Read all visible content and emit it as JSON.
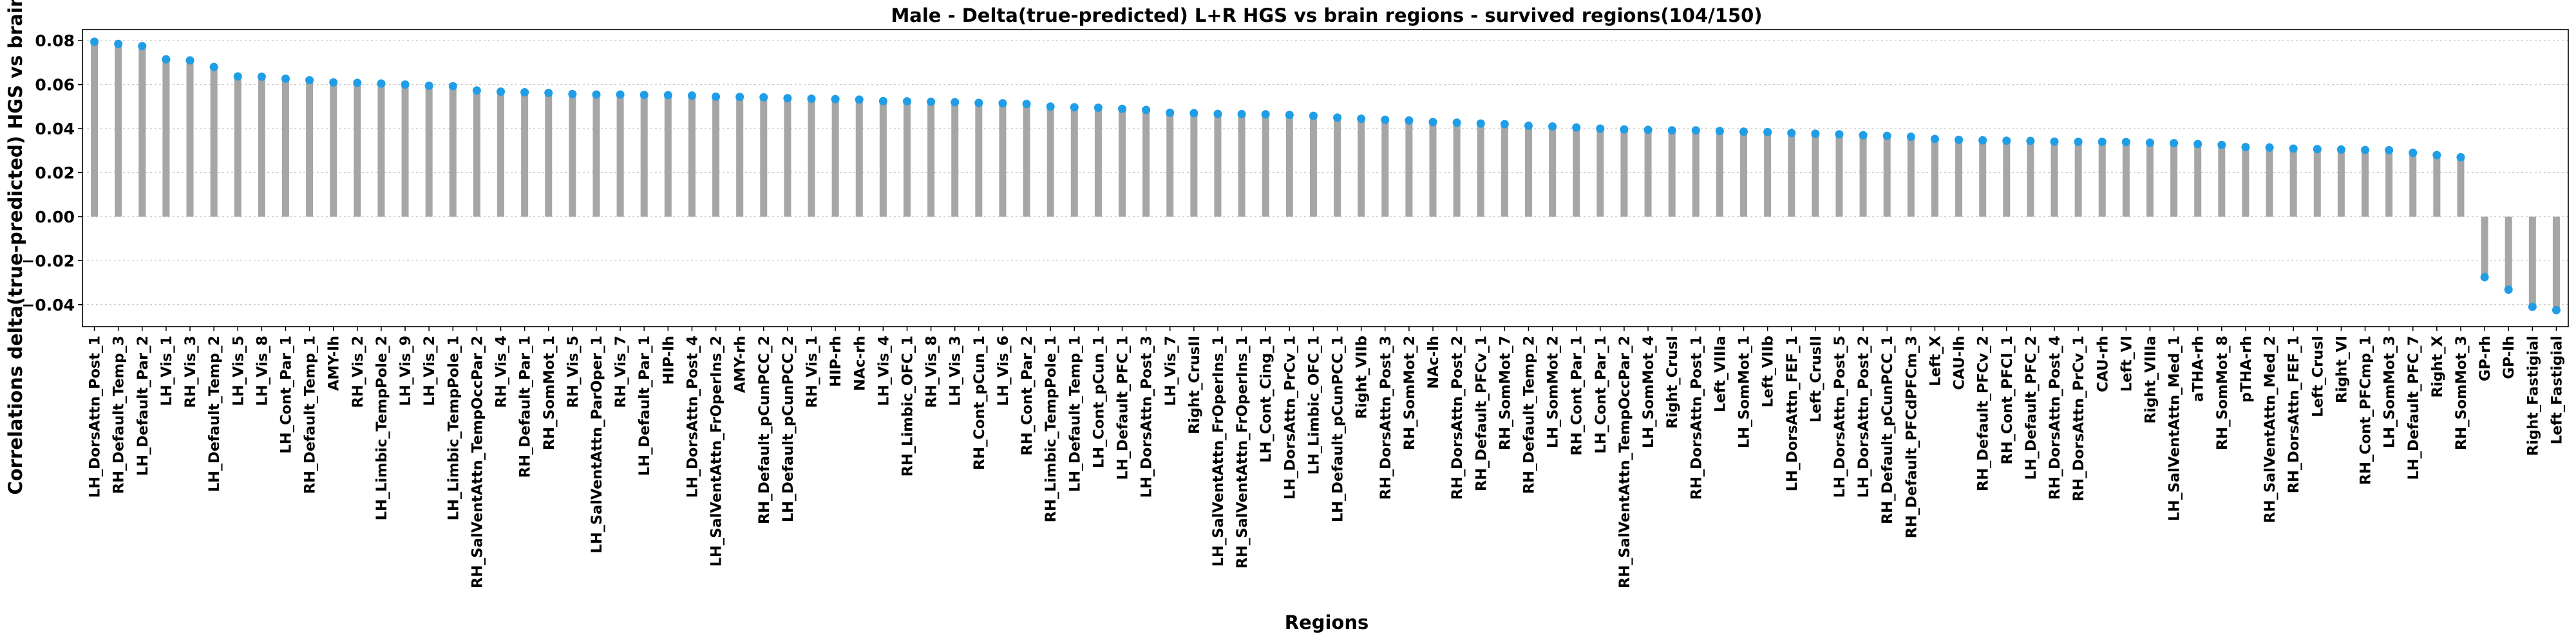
{
  "chart_data": {
    "type": "bar",
    "title": "Male - Delta(true-predicted) L+R HGS vs brain regions - survived regions(104/150)",
    "xlabel": "Regions",
    "ylabel": "Correlations delta(true-predicted) HGS vs brain",
    "ylim": [
      -0.05,
      0.085
    ],
    "yticks": [
      -0.04,
      -0.02,
      0.0,
      0.02,
      0.04,
      0.06,
      0.08
    ],
    "ytick_labels": [
      "−0.04",
      "−0.02",
      "0.00",
      "0.02",
      "0.04",
      "0.06",
      "0.08"
    ],
    "grid": true,
    "bar_color": "#a6a6a6",
    "marker_color": "#1f9de6",
    "categories": [
      "LH_DorsAttn_Post_1",
      "RH_Default_Temp_3",
      "LH_Default_Par_2",
      "LH_Vis_1",
      "RH_Vis_3",
      "LH_Default_Temp_2",
      "LH_Vis_5",
      "LH_Vis_8",
      "LH_Cont_Par_1",
      "RH_Default_Temp_1",
      "AMY-lh",
      "RH_Vis_2",
      "LH_Limbic_TempPole_2",
      "LH_Vis_9",
      "LH_Vis_2",
      "LH_Limbic_TempPole_1",
      "RH_SalVentAttn_TempOccPar_2",
      "RH_Vis_4",
      "RH_Default_Par_1",
      "RH_SomMot_1",
      "RH_Vis_5",
      "LH_SalVentAttn_ParOper_1",
      "RH_Vis_7",
      "LH_Default_Par_1",
      "HIP-lh",
      "LH_DorsAttn_Post_4",
      "LH_SalVentAttn_FrOperIns_2",
      "AMY-rh",
      "RH_Default_pCunPCC_2",
      "LH_Default_pCunPCC_2",
      "RH_Vis_1",
      "HIP-rh",
      "NAc-rh",
      "LH_Vis_4",
      "RH_Limbic_OFC_1",
      "RH_Vis_8",
      "LH_Vis_3",
      "RH_Cont_pCun_1",
      "LH_Vis_6",
      "RH_Cont_Par_2",
      "RH_Limbic_TempPole_1",
      "LH_Default_Temp_1",
      "LH_Cont_pCun_1",
      "LH_Default_PFC_1",
      "LH_DorsAttn_Post_3",
      "LH_Vis_7",
      "Right_CrusII",
      "LH_SalVentAttn_FrOperIns_1",
      "RH_SalVentAttn_FrOperIns_1",
      "LH_Cont_Cing_1",
      "LH_DorsAttn_PrCv_1",
      "LH_Limbic_OFC_1",
      "LH_Default_pCunPCC_1",
      "Right_VIIb",
      "RH_DorsAttn_Post_3",
      "RH_SomMot_2",
      "NAc-lh",
      "RH_DorsAttn_Post_2",
      "RH_Default_PFCv_1",
      "RH_SomMot_7",
      "RH_Default_Temp_2",
      "LH_SomMot_2",
      "RH_Cont_Par_1",
      "LH_Cont_Par_1",
      "RH_SalVentAttn_TempOccPar_2",
      "LH_SomMot_4",
      "Right_CrusI",
      "RH_DorsAttn_Post_1",
      "Left_VIIIa",
      "LH_SomMot_1",
      "Left_VIIb",
      "LH_DorsAttn_FEF_1",
      "Left_CrusII",
      "LH_DorsAttn_Post_5",
      "LH_DorsAttn_Post_2",
      "RH_Default_pCunPCC_1",
      "RH_Default_PFCdPFCm_3",
      "Left_X",
      "CAU-lh",
      "RH_Default_PFCv_2",
      "RH_Cont_PFCl_1",
      "LH_Default_PFC_2",
      "RH_DorsAttn_Post_4",
      "RH_DorsAttn_PrCv_1",
      "CAU-rh",
      "Left_VI",
      "Right_VIIIa",
      "LH_SalVentAttn_Med_1",
      "aTHA-rh",
      "RH_SomMot_8",
      "pTHA-rh",
      "RH_SalVentAttn_Med_2",
      "RH_DorsAttn_FEF_1",
      "Left_CrusI",
      "Right_VI",
      "RH_Cont_PFCmp_1",
      "LH_SomMot_3",
      "LH_Default_PFC_7",
      "Right_X",
      "RH_SomMot_3",
      "GP-rh",
      "GP-lh",
      "Right_Fastigial",
      "Left_Fastigial"
    ],
    "values": [
      0.0795,
      0.0785,
      0.0775,
      0.0715,
      0.071,
      0.068,
      0.0637,
      0.0636,
      0.0627,
      0.062,
      0.061,
      0.0608,
      0.0605,
      0.06,
      0.0595,
      0.0593,
      0.0573,
      0.0568,
      0.0565,
      0.0562,
      0.0557,
      0.0555,
      0.0555,
      0.0553,
      0.0552,
      0.055,
      0.0545,
      0.0544,
      0.0542,
      0.0538,
      0.0536,
      0.0534,
      0.0532,
      0.0525,
      0.0524,
      0.0522,
      0.052,
      0.0517,
      0.0515,
      0.0512,
      0.05,
      0.0497,
      0.0495,
      0.049,
      0.0485,
      0.0472,
      0.047,
      0.0467,
      0.0466,
      0.0465,
      0.0462,
      0.0458,
      0.045,
      0.0445,
      0.044,
      0.0437,
      0.043,
      0.0427,
      0.0423,
      0.042,
      0.0413,
      0.041,
      0.0405,
      0.04,
      0.0396,
      0.0394,
      0.0392,
      0.0392,
      0.0389,
      0.0386,
      0.0384,
      0.038,
      0.0377,
      0.0374,
      0.037,
      0.0367,
      0.0363,
      0.0353,
      0.0349,
      0.0347,
      0.0345,
      0.0344,
      0.0341,
      0.034,
      0.034,
      0.0339,
      0.0336,
      0.0334,
      0.033,
      0.0326,
      0.0316,
      0.0314,
      0.0309,
      0.0307,
      0.0305,
      0.0303,
      0.0302,
      0.029,
      0.028,
      0.027,
      -0.0275,
      -0.0332,
      -0.041,
      -0.0425
    ]
  }
}
